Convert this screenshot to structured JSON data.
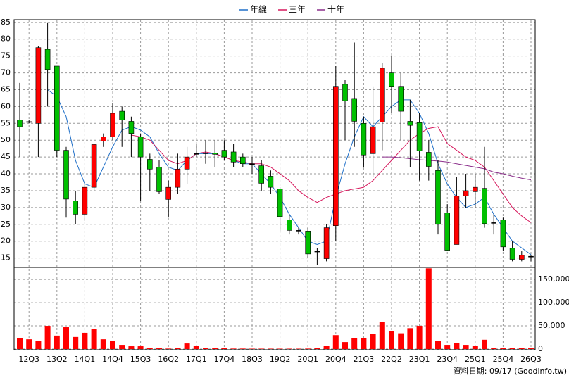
{
  "chart_data": {
    "type": "candlestick",
    "categories": [
      null,
      "12Q3",
      null,
      null,
      "13Q2",
      null,
      null,
      "14Q1",
      null,
      null,
      "14Q4",
      null,
      null,
      "15Q3",
      null,
      null,
      "16Q2",
      null,
      null,
      "17Q1",
      null,
      null,
      "17Q4",
      null,
      null,
      "18Q3",
      null,
      null,
      "19Q2",
      null,
      null,
      "20Q1",
      null,
      null,
      "20Q4",
      null,
      null,
      "21Q3",
      null,
      null,
      "22Q2",
      null,
      null,
      "23Q1",
      null,
      null,
      "23Q4",
      null,
      null,
      "25Q1",
      null,
      null,
      "25Q4",
      null,
      null,
      "26Q3"
    ],
    "open": [
      56,
      55.5,
      55,
      77,
      72,
      47,
      32,
      28,
      36,
      49.7,
      51,
      58.6,
      55.6,
      51,
      44.3,
      42,
      32.4,
      36,
      41.4,
      46,
      46.2,
      46.2,
      47,
      46.5,
      45,
      43,
      42.4,
      39.3,
      35.5,
      26.3,
      23.2,
      23,
      17,
      14.8,
      24.6,
      66.6,
      62.4,
      55,
      46,
      55.4,
      70,
      66,
      55.6,
      55.2,
      46.4,
      41,
      28.4,
      19,
      33.4,
      34.7,
      35.7,
      25.5,
      26.3,
      17.9,
      14.6,
      15.5
    ],
    "high": [
      67,
      56,
      78,
      85,
      72,
      48,
      35,
      37,
      49,
      52,
      61,
      60,
      57,
      52,
      46,
      44,
      38,
      46,
      48,
      49,
      50,
      50,
      50,
      49,
      46,
      45,
      44,
      41,
      36,
      28,
      24,
      24,
      18,
      25,
      72,
      68,
      79,
      57,
      66,
      73,
      75,
      70,
      62,
      58,
      50,
      44,
      31,
      39,
      40,
      40,
      48,
      28,
      27,
      20,
      17,
      16
    ],
    "low": [
      45,
      55,
      45,
      60,
      45,
      27,
      25,
      26,
      35,
      48,
      50,
      48,
      45,
      32,
      35,
      34,
      27,
      34,
      37,
      45,
      43,
      42,
      44,
      42,
      42,
      40,
      35,
      34,
      23,
      22,
      22,
      15,
      13,
      14,
      20,
      50,
      48,
      42,
      39,
      47,
      58,
      50,
      42,
      38,
      38,
      22,
      17,
      19,
      30,
      30,
      24,
      22,
      17,
      14,
      14,
      14
    ],
    "close": [
      54,
      55.5,
      77.5,
      71,
      47,
      32.5,
      28,
      36,
      48.7,
      51,
      58,
      56,
      52,
      45,
      41.4,
      34.7,
      36,
      41.4,
      45,
      46,
      46.2,
      45.8,
      45,
      43.5,
      43,
      43,
      37.2,
      36,
      27.3,
      23.2,
      23.2,
      16.2,
      17,
      24,
      66,
      61.7,
      55.6,
      45.6,
      54,
      71.4,
      66,
      58.6,
      54.4,
      46.8,
      42.2,
      25,
      17.3,
      33.4,
      35,
      36,
      25.2,
      25.5,
      18.3,
      14.6,
      15.8,
      15.5
    ],
    "up_color": "#ff0000",
    "down_color": "#00c000",
    "ylim": [
      12.2,
      85.8
    ],
    "yticks": [
      15,
      20,
      25,
      30,
      35,
      40,
      45,
      50,
      55,
      60,
      65,
      70,
      75,
      80,
      85
    ],
    "grid": true,
    "series": [
      {
        "name": "年線",
        "color": "#1f6fc8",
        "values": [
          null,
          null,
          null,
          65,
          63,
          57,
          44,
          37,
          36,
          42,
          48,
          53,
          54,
          53,
          51,
          46,
          42,
          41,
          44,
          46,
          46,
          46,
          45,
          44,
          43,
          43,
          40,
          37,
          33,
          28,
          24,
          20,
          19,
          20,
          33,
          43,
          51,
          57,
          54,
          57,
          60,
          62,
          62,
          58,
          52,
          43,
          37,
          33,
          30,
          31,
          33,
          28,
          24,
          20,
          18,
          16
        ]
      },
      {
        "name": "三年",
        "color": "#d6175c",
        "values": [
          null,
          null,
          null,
          null,
          null,
          null,
          null,
          null,
          null,
          null,
          null,
          null,
          51.5,
          51,
          50,
          47,
          44,
          43,
          44,
          46,
          46.5,
          46,
          45,
          44,
          43.5,
          43,
          43,
          42,
          40,
          38,
          35,
          33,
          31.5,
          33,
          34,
          35,
          35.5,
          36,
          38,
          41,
          44,
          47,
          50,
          52,
          53.5,
          54,
          49,
          47,
          45,
          44,
          42,
          38,
          34,
          30,
          27.5,
          25.5
        ]
      },
      {
        "name": "十年",
        "color": "#8a2d8a",
        "values": [
          null,
          null,
          null,
          null,
          null,
          null,
          null,
          null,
          null,
          null,
          null,
          null,
          null,
          null,
          null,
          null,
          null,
          null,
          null,
          null,
          null,
          null,
          null,
          null,
          null,
          null,
          null,
          null,
          null,
          null,
          null,
          null,
          null,
          null,
          null,
          null,
          null,
          null,
          null,
          45,
          45,
          44.8,
          44.5,
          44.2,
          44,
          43.8,
          43.5,
          43,
          42.5,
          42,
          41.5,
          40.5,
          40,
          39.3,
          38.7,
          38.2
        ]
      }
    ],
    "volume": {
      "color": "#ff0000",
      "values": [
        23000,
        21000,
        17000,
        50000,
        29000,
        47000,
        26000,
        35000,
        44000,
        21000,
        17000,
        9000,
        6000,
        6000,
        1500,
        1500,
        1000,
        2500,
        12000,
        7500,
        2500,
        1500,
        1500,
        1000,
        1000,
        800,
        800,
        800,
        800,
        800,
        800,
        1000,
        3000,
        7000,
        30000,
        15000,
        24000,
        23000,
        32000,
        58000,
        39000,
        34000,
        45000,
        50000,
        174000,
        18000,
        9000,
        13000,
        9000,
        7000,
        20000,
        2500,
        2500,
        1500,
        2500,
        1500
      ],
      "ylim": [
        0,
        176000
      ],
      "yticks": [
        0,
        {
          "value": 50000,
          "label": "50,000"
        },
        {
          "value": 100000,
          "label": "100,000"
        },
        {
          "value": 150000,
          "label": "150,000"
        }
      ]
    },
    "footer": "資料日期: 09/17 (Goodinfo.tw)"
  }
}
